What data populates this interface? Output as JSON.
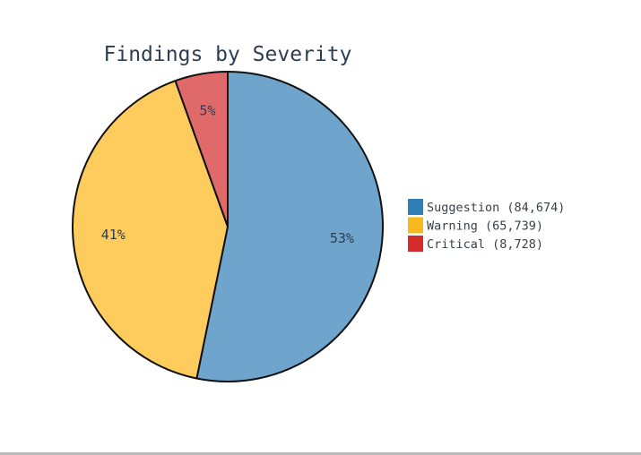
{
  "chart_data": {
    "type": "pie",
    "title": "Findings by Severity",
    "slices": [
      {
        "label": "Suggestion",
        "value": 84674,
        "value_text": "84,674",
        "percent_label": "53%",
        "color": "#6fa5cc",
        "legend_color": "#2f7fb8"
      },
      {
        "label": "Warning",
        "value": 65739,
        "value_text": "65,739",
        "percent_label": "41%",
        "color": "#fdcc5c",
        "legend_color": "#f9b820"
      },
      {
        "label": "Critical",
        "value": 8728,
        "value_text": "8,728",
        "percent_label": "5%",
        "color": "#e06a6a",
        "legend_color": "#d62b2b"
      }
    ],
    "start_angle_deg": 0,
    "direction": "clockwise",
    "legend_position": "right"
  }
}
